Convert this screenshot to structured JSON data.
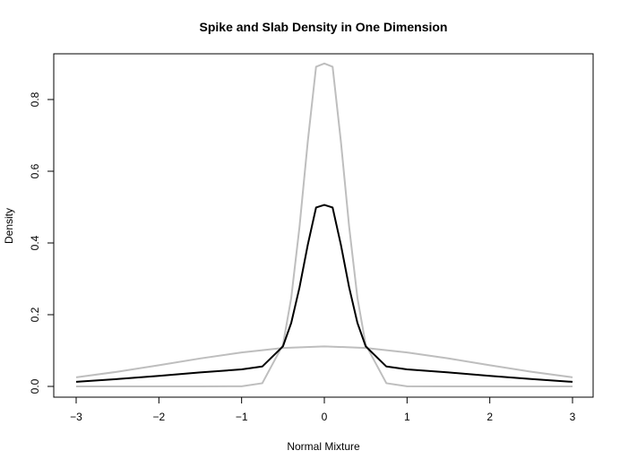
{
  "chart_data": {
    "type": "line",
    "title": "Spike and Slab Density in One Dimension",
    "xlabel": "Normal Mixture",
    "ylabel": "Density",
    "xlim": [
      -3,
      3
    ],
    "ylim": [
      0,
      0.9
    ],
    "grid": false,
    "x_ticks": [
      -3,
      -2,
      -1,
      0,
      1,
      2,
      3
    ],
    "x_tick_labels": [
      "−3",
      "−2",
      "−1",
      "0",
      "1",
      "2",
      "3"
    ],
    "y_ticks": [
      0.0,
      0.2,
      0.4,
      0.6,
      0.8
    ],
    "y_tick_labels": [
      "0.0",
      "0.2",
      "0.4",
      "0.6",
      "0.8"
    ],
    "series": [
      {
        "color": "#bebebe",
        "x": [
          -3,
          -2.5,
          -2,
          -1.5,
          -1,
          -0.75,
          -0.5,
          -0.4,
          -0.3,
          -0.2,
          -0.1,
          0,
          0.1,
          0.2,
          0.3,
          0.4,
          0.5,
          0.75,
          1,
          1.5,
          2,
          2.5,
          3
        ],
        "y": [
          0,
          0,
          0,
          0,
          0.0003,
          0.0089,
          0.1164,
          0.2471,
          0.4452,
          0.6832,
          0.8914,
          0.9005,
          0.8914,
          0.6832,
          0.4452,
          0.2471,
          0.1164,
          0.0089,
          0.0003,
          0,
          0,
          0,
          0
        ]
      },
      {
        "color": "#bebebe",
        "x": [
          -3,
          -2.5,
          -2,
          -1.5,
          -1,
          -0.5,
          0,
          0.5,
          1,
          1.5,
          2,
          2.5,
          3
        ],
        "y": [
          0.0254,
          0.0409,
          0.059,
          0.078,
          0.0948,
          0.1073,
          0.1117,
          0.1073,
          0.0948,
          0.078,
          0.059,
          0.0409,
          0.0254
        ]
      },
      {
        "color": "#000000",
        "x": [
          -3,
          -2.5,
          -2,
          -1.5,
          -1,
          -0.75,
          -0.5,
          -0.4,
          -0.3,
          -0.2,
          -0.1,
          0,
          0.1,
          0.2,
          0.3,
          0.4,
          0.5,
          0.75,
          1,
          1.5,
          2,
          2.5,
          3
        ],
        "y": [
          0.0127,
          0.0205,
          0.0295,
          0.039,
          0.0475,
          0.0555,
          0.1118,
          0.1772,
          0.2761,
          0.395,
          0.4988,
          0.5061,
          0.4988,
          0.395,
          0.2761,
          0.1772,
          0.1118,
          0.0555,
          0.0475,
          0.039,
          0.0295,
          0.0205,
          0.0127
        ]
      }
    ]
  }
}
